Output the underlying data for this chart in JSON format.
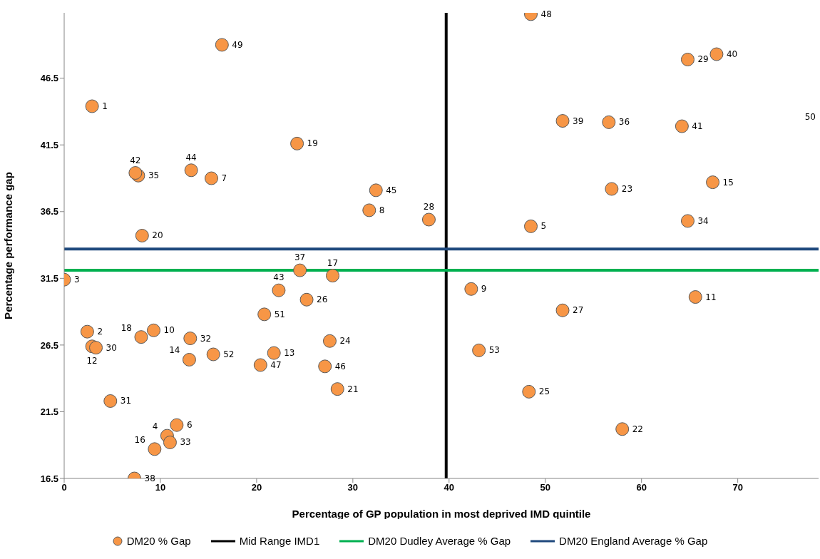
{
  "chart_data": {
    "type": "scatter",
    "xlabel": "Percentage of GP population in most deprived IMD quintile",
    "ylabel": "Percentage performance gap",
    "xlim": [
      0,
      78.4
    ],
    "xticks": [
      0,
      10,
      20,
      30,
      40,
      50,
      60,
      70
    ],
    "ylim": [
      16.5,
      51.4
    ],
    "yticks": [
      16.5,
      21.5,
      26.5,
      31.5,
      36.5,
      41.5,
      46.5
    ],
    "grid": false,
    "legend": "bottom",
    "marker": "circle",
    "series": [
      {
        "name": "DM20 % Gap",
        "color": "#f79646",
        "x": [
          2.9,
          2.4,
          0.0,
          10.7,
          48.5,
          11.7,
          15.3,
          31.7,
          42.3,
          9.3,
          65.6,
          2.9,
          21.8,
          13.0,
          67.4,
          9.4,
          27.9,
          8.0,
          24.2,
          8.1,
          28.4,
          58.0,
          56.9,
          27.6,
          48.3,
          25.2,
          51.8,
          37.9,
          64.8,
          3.3,
          4.8,
          13.1,
          11.0,
          64.8,
          7.7,
          56.6,
          24.5,
          7.3,
          51.8,
          67.8,
          64.2,
          7.4,
          22.3,
          13.2,
          32.4,
          27.1,
          20.4,
          48.5,
          16.4,
          20.8,
          15.5,
          43.1
        ],
        "values": [
          44.4,
          27.5,
          31.4,
          19.7,
          35.4,
          20.5,
          39.0,
          36.6,
          30.7,
          27.6,
          30.1,
          26.4,
          25.9,
          25.4,
          38.7,
          18.7,
          31.7,
          27.1,
          41.6,
          34.7,
          23.2,
          20.2,
          38.2,
          26.8,
          23.0,
          29.9,
          29.1,
          35.9,
          47.9,
          26.3,
          22.3,
          27.0,
          19.2,
          35.8,
          39.2,
          43.2,
          32.1,
          16.5,
          43.3,
          48.3,
          42.9,
          39.4,
          30.6,
          39.6,
          38.1,
          24.9,
          25.0,
          51.3,
          49.0,
          28.8,
          25.8,
          26.1
        ]
      }
    ],
    "ref_lines": [
      {
        "axis": "x",
        "value": 39.7,
        "label": "Mid Range IMD1",
        "color": "#000000"
      },
      {
        "axis": "y",
        "value": 32.1,
        "label": "DM20 Dudley Average % Gap",
        "color": "#00b050"
      },
      {
        "axis": "y",
        "value": 33.7,
        "label": "DM20 England Average % Gap",
        "color": "#1f497d"
      }
    ],
    "annotations": [
      {
        "text": "1",
        "x": 2.9,
        "y": 44.4
      },
      {
        "text": "2",
        "x": 2.4,
        "y": 27.5
      },
      {
        "text": "3",
        "x": 0.0,
        "y": 31.4
      },
      {
        "text": "4",
        "x": 10.7,
        "y": 19.7
      },
      {
        "text": "5",
        "x": 48.5,
        "y": 35.4
      },
      {
        "text": "6",
        "x": 11.7,
        "y": 20.5
      },
      {
        "text": "7",
        "x": 15.3,
        "y": 39.0
      },
      {
        "text": "8",
        "x": 31.7,
        "y": 36.6
      },
      {
        "text": "9",
        "x": 42.3,
        "y": 30.7
      },
      {
        "text": "10",
        "x": 9.3,
        "y": 27.6
      },
      {
        "text": "11",
        "x": 65.6,
        "y": 30.1
      },
      {
        "text": "12",
        "x": 2.9,
        "y": 26.4
      },
      {
        "text": "13",
        "x": 21.8,
        "y": 25.9
      },
      {
        "text": "14",
        "x": 13.0,
        "y": 25.4
      },
      {
        "text": "15",
        "x": 67.4,
        "y": 38.7
      },
      {
        "text": "16",
        "x": 9.4,
        "y": 18.7
      },
      {
        "text": "17",
        "x": 27.9,
        "y": 31.7
      },
      {
        "text": "18",
        "x": 8.0,
        "y": 27.1
      },
      {
        "text": "19",
        "x": 24.2,
        "y": 41.6
      },
      {
        "text": "20",
        "x": 8.1,
        "y": 34.7
      },
      {
        "text": "21",
        "x": 28.4,
        "y": 23.2
      },
      {
        "text": "22",
        "x": 58.0,
        "y": 20.2
      },
      {
        "text": "23",
        "x": 56.9,
        "y": 38.2
      },
      {
        "text": "24",
        "x": 27.6,
        "y": 26.8
      },
      {
        "text": "25",
        "x": 48.3,
        "y": 23.0
      },
      {
        "text": "26",
        "x": 25.2,
        "y": 29.9
      },
      {
        "text": "27",
        "x": 51.8,
        "y": 29.1
      },
      {
        "text": "28",
        "x": 37.9,
        "y": 35.9
      },
      {
        "text": "29",
        "x": 64.8,
        "y": 47.9
      },
      {
        "text": "30",
        "x": 3.3,
        "y": 26.3
      },
      {
        "text": "31",
        "x": 4.8,
        "y": 22.3
      },
      {
        "text": "32",
        "x": 13.1,
        "y": 27.0
      },
      {
        "text": "33",
        "x": 11.0,
        "y": 19.2
      },
      {
        "text": "34",
        "x": 64.8,
        "y": 35.8
      },
      {
        "text": "35",
        "x": 7.7,
        "y": 39.2
      },
      {
        "text": "36",
        "x": 56.6,
        "y": 43.2
      },
      {
        "text": "37",
        "x": 24.5,
        "y": 32.1
      },
      {
        "text": "38",
        "x": 7.3,
        "y": 16.5
      },
      {
        "text": "39",
        "x": 51.8,
        "y": 43.3
      },
      {
        "text": "40",
        "x": 67.8,
        "y": 48.3
      },
      {
        "text": "41",
        "x": 64.2,
        "y": 42.9
      },
      {
        "text": "42",
        "x": 7.4,
        "y": 39.4
      },
      {
        "text": "43",
        "x": 22.3,
        "y": 30.6
      },
      {
        "text": "44",
        "x": 13.2,
        "y": 39.6
      },
      {
        "text": "45",
        "x": 32.4,
        "y": 38.1
      },
      {
        "text": "46",
        "x": 27.1,
        "y": 24.9
      },
      {
        "text": "47",
        "x": 20.4,
        "y": 25.0
      },
      {
        "text": "48",
        "x": 48.5,
        "y": 51.3
      },
      {
        "text": "49",
        "x": 16.4,
        "y": 49.0
      },
      {
        "text": "51",
        "x": 20.8,
        "y": 28.8
      },
      {
        "text": "52",
        "x": 15.5,
        "y": 25.8
      },
      {
        "text": "53",
        "x": 43.1,
        "y": 26.1
      },
      "50"
    ]
  }
}
